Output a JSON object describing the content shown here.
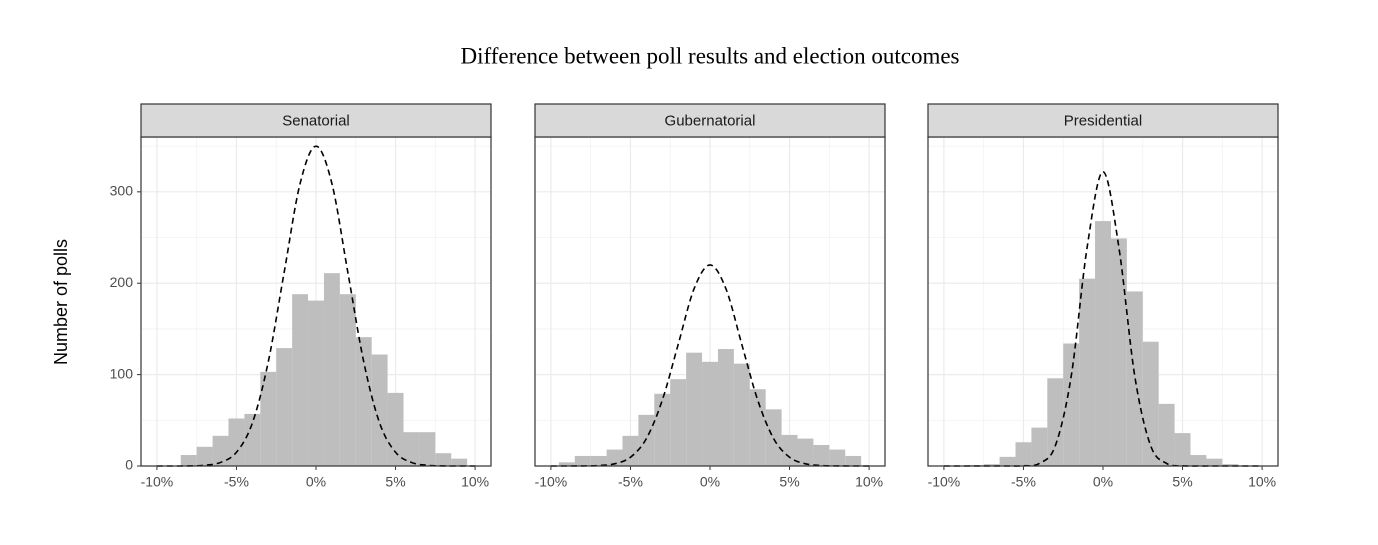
{
  "title": "Difference between poll results and election outcomes",
  "y_label": "Number of polls",
  "chart_data": [
    {
      "type": "histogram",
      "facet": "Senatorial",
      "color": "#bebebe",
      "bins": [
        -8.5,
        -7.5,
        -6.5,
        -5.5,
        -4.5,
        -3.5,
        -2.5,
        -1.5,
        -0.5,
        0.5,
        1.5,
        2.5,
        3.5,
        4.5,
        5.5,
        6.5,
        7.5,
        8.5,
        9.5
      ],
      "counts": [
        12,
        21,
        33,
        52,
        57,
        103,
        129,
        188,
        181,
        211,
        188,
        141,
        122,
        80,
        37,
        37,
        14,
        8
      ],
      "curve_x": [
        -10,
        -9,
        -8,
        -7,
        -6,
        -5,
        -4,
        -3,
        -2,
        -1,
        0,
        1,
        2,
        3,
        4,
        5,
        6,
        7,
        8,
        9,
        10
      ],
      "curve_y": [
        0,
        0,
        0.1,
        0.8,
        3.9,
        15,
        47,
        114,
        212,
        309,
        350,
        309,
        212,
        114,
        47,
        15,
        3.9,
        0.8,
        0.1,
        0,
        0
      ],
      "xlim": [
        -11,
        11
      ],
      "ylim": [
        0,
        360
      ],
      "xticks": [
        {
          "value": -10,
          "label": "-10%"
        },
        {
          "value": -5,
          "label": "-5%"
        },
        {
          "value": 0,
          "label": "0%"
        },
        {
          "value": 5,
          "label": "5%"
        },
        {
          "value": 10,
          "label": "10%"
        }
      ],
      "yticks": [
        0,
        100,
        200,
        300
      ],
      "grid": true
    },
    {
      "type": "histogram",
      "facet": "Gubernatorial",
      "color": "#bebebe",
      "bins": [
        -9.5,
        -8.5,
        -7.5,
        -6.5,
        -5.5,
        -4.5,
        -3.5,
        -2.5,
        -1.5,
        -0.5,
        0.5,
        1.5,
        2.5,
        3.5,
        4.5,
        5.5,
        6.5,
        7.5,
        8.5,
        9.5
      ],
      "counts": [
        4,
        11,
        11,
        18,
        33,
        56,
        79,
        95,
        124,
        114,
        128,
        112,
        84,
        62,
        34,
        30,
        23,
        18,
        11
      ],
      "curve_x": [
        -10,
        -9,
        -8,
        -7,
        -6,
        -5,
        -4,
        -3,
        -2,
        -1,
        0,
        1,
        2,
        3,
        4,
        5,
        6,
        7,
        8,
        9,
        10
      ],
      "curve_y": [
        0,
        0,
        0.1,
        0.5,
        2.4,
        9.6,
        30,
        72,
        133,
        194,
        220,
        194,
        133,
        72,
        30,
        9.6,
        2.4,
        0.5,
        0.1,
        0,
        0
      ],
      "xlim": [
        -11,
        11
      ],
      "ylim": [
        0,
        360
      ],
      "xticks": [
        {
          "value": -10,
          "label": "-10%"
        },
        {
          "value": -5,
          "label": "-5%"
        },
        {
          "value": 0,
          "label": "0%"
        },
        {
          "value": 5,
          "label": "5%"
        },
        {
          "value": 10,
          "label": "10%"
        }
      ],
      "yticks": [
        0,
        100,
        200,
        300
      ],
      "grid": true
    },
    {
      "type": "histogram",
      "facet": "Presidential",
      "color": "#bebebe",
      "bins": [
        -8.5,
        -7.5,
        -6.5,
        -5.5,
        -4.5,
        -3.5,
        -2.5,
        -1.5,
        -0.5,
        0.5,
        1.5,
        2.5,
        3.5,
        4.5,
        5.5,
        6.5,
        7.5,
        8.5
      ],
      "counts": [
        1,
        2,
        10,
        26,
        42,
        96,
        134,
        205,
        268,
        249,
        191,
        136,
        68,
        36,
        12,
        8,
        2
      ],
      "curve_x": [
        -10,
        -9,
        -8,
        -7,
        -6,
        -5,
        -4,
        -3,
        -2,
        -1,
        0,
        1,
        2,
        3,
        4,
        5,
        6,
        7,
        8,
        9,
        10
      ],
      "curve_y": [
        0,
        0,
        0,
        0,
        0,
        0.2,
        2.8,
        22,
        98,
        239,
        322,
        239,
        98,
        22,
        2.8,
        0.2,
        0,
        0,
        0,
        0,
        0
      ],
      "xlim": [
        -11,
        11
      ],
      "ylim": [
        0,
        360
      ],
      "xticks": [
        {
          "value": -10,
          "label": "-10%"
        },
        {
          "value": -5,
          "label": "-5%"
        },
        {
          "value": 0,
          "label": "0%"
        },
        {
          "value": 5,
          "label": "5%"
        },
        {
          "value": 10,
          "label": "10%"
        }
      ],
      "yticks": [
        0,
        100,
        200,
        300
      ],
      "grid": true
    }
  ]
}
